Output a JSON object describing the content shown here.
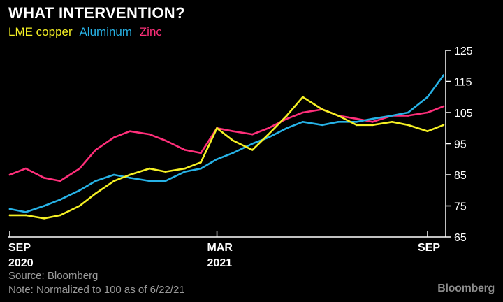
{
  "title": "WHAT INTERVENTION?",
  "legend": [
    {
      "name": "LME copper",
      "color": "#f5f024"
    },
    {
      "name": "Aluminum",
      "color": "#27b2e6"
    },
    {
      "name": "Zinc",
      "color": "#ff2f7a"
    }
  ],
  "footer": {
    "source": "Source: Bloomberg",
    "note": "Note: Normalized to 100 as of 6/22/21",
    "brand": "Bloomberg"
  },
  "chart_data": {
    "type": "line",
    "title": "WHAT INTERVENTION?",
    "xlabel": "",
    "ylabel": "",
    "ylim": [
      65,
      125
    ],
    "y_ticks": [
      65,
      75,
      85,
      95,
      105,
      115,
      125
    ],
    "x_ticks": [
      {
        "date": "2020-09",
        "line1": "SEP",
        "line2": "2020"
      },
      {
        "date": "2021-03",
        "line1": "MAR",
        "line2": "2021"
      },
      {
        "date": "2021-09",
        "line1": "SEP",
        "line2": ""
      }
    ],
    "grid": false,
    "legend_position": "top-left",
    "x": [
      "2020-09-01",
      "2020-09-15",
      "2020-10-01",
      "2020-10-15",
      "2020-11-01",
      "2020-11-15",
      "2020-12-01",
      "2020-12-15",
      "2021-01-01",
      "2021-01-15",
      "2021-02-01",
      "2021-02-15",
      "2021-03-01",
      "2021-03-15",
      "2021-04-01",
      "2021-04-15",
      "2021-05-01",
      "2021-05-15",
      "2021-06-01",
      "2021-06-15",
      "2021-07-01",
      "2021-07-15",
      "2021-08-01",
      "2021-08-15",
      "2021-09-01",
      "2021-09-15"
    ],
    "series": [
      {
        "name": "Zinc",
        "color": "#ff2f7a",
        "values": [
          85,
          87,
          84,
          83,
          87,
          93,
          97,
          99,
          98,
          96,
          93,
          92,
          100,
          99,
          98,
          100,
          103,
          105,
          106,
          104,
          103,
          102,
          104,
          104,
          105,
          107
        ]
      },
      {
        "name": "Aluminum",
        "color": "#27b2e6",
        "values": [
          74,
          73,
          75,
          77,
          80,
          83,
          85,
          84,
          83,
          83,
          86,
          87,
          90,
          92,
          95,
          97,
          100,
          102,
          101,
          102,
          102,
          103,
          104,
          105,
          110,
          117
        ]
      },
      {
        "name": "LME copper",
        "color": "#f5f024",
        "values": [
          72,
          72,
          71,
          72,
          75,
          79,
          83,
          85,
          87,
          86,
          87,
          89,
          100,
          96,
          93,
          98,
          104,
          110,
          106,
          104,
          101,
          101,
          102,
          101,
          99,
          101
        ]
      }
    ]
  }
}
